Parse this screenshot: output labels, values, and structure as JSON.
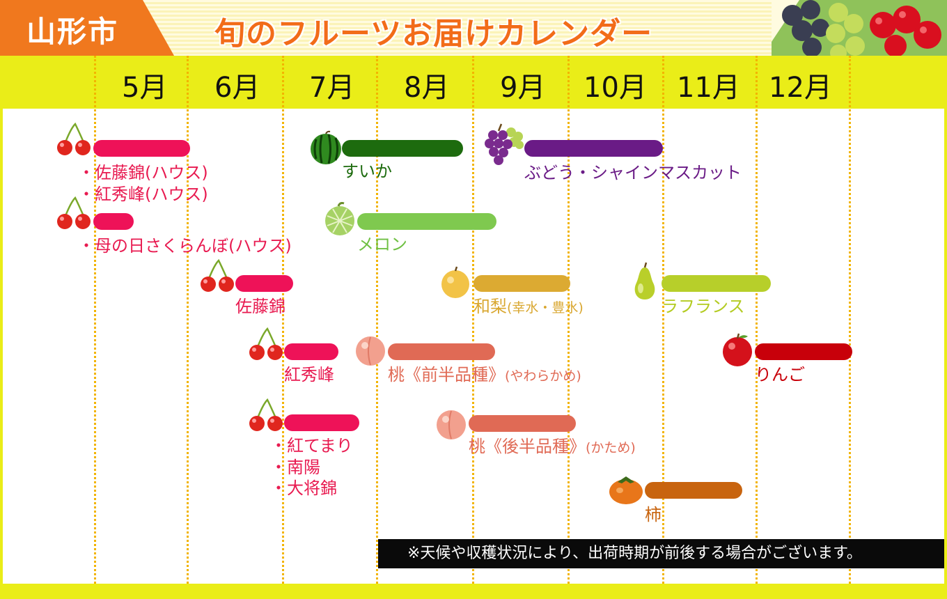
{
  "header": {
    "city": "山形市",
    "title": "旬のフルーツお届けカレンダー"
  },
  "months": [
    "5月",
    "6月",
    "7月",
    "8月",
    "9月",
    "10月",
    "11月",
    "12月"
  ],
  "colors": {
    "cherry": "#ee1258",
    "watermelon": "#1d6b0e",
    "grape": "#6a1b86",
    "melon": "#7fc94f",
    "pear": "#dcaa32",
    "la_france": "#b7cf2a",
    "peach": "#e06a55",
    "apple": "#c8000a",
    "persimmon": "#c8640f"
  },
  "fruits": {
    "sato_house": {
      "icon": "cherry-icon",
      "label1": "・佐藤錦(ハウス)",
      "label2": "・紅秀峰(ハウス)"
    },
    "mothers_day": {
      "icon": "cherry-icon",
      "label": "・母の日さくらんぼ(ハウス)"
    },
    "satonishiki": {
      "icon": "cherry-icon",
      "label": "佐藤錦"
    },
    "benishuho": {
      "icon": "cherry-icon",
      "label": "紅秀峰"
    },
    "benitemari": {
      "icon": "cherry-icon",
      "label1": "・紅てまり",
      "label2": "・南陽",
      "label3": "・大将錦"
    },
    "watermelon": {
      "icon": "watermelon-icon",
      "label": "すいか"
    },
    "grape": {
      "icon": "grape-icon",
      "label": "ぶどう・シャインマスカット"
    },
    "melon": {
      "icon": "melon-icon",
      "label": "メロン"
    },
    "pear": {
      "icon": "pear-icon",
      "label": "和梨",
      "label_small": "(幸水・豊水)"
    },
    "la_france": {
      "icon": "la-france-icon",
      "label": "ラフランス"
    },
    "peach_early": {
      "icon": "peach-icon",
      "label": "桃《前半品種》",
      "label_small": "(やわらかめ)"
    },
    "peach_late": {
      "icon": "peach-icon",
      "label": "桃《後半品種》",
      "label_small": "(かため)"
    },
    "apple": {
      "icon": "apple-icon",
      "label": "りんご"
    },
    "persimmon": {
      "icon": "persimmon-icon",
      "label": "柿"
    }
  },
  "note": "※天候や収穫状況により、出荷時期が前後する場合がございます。"
}
